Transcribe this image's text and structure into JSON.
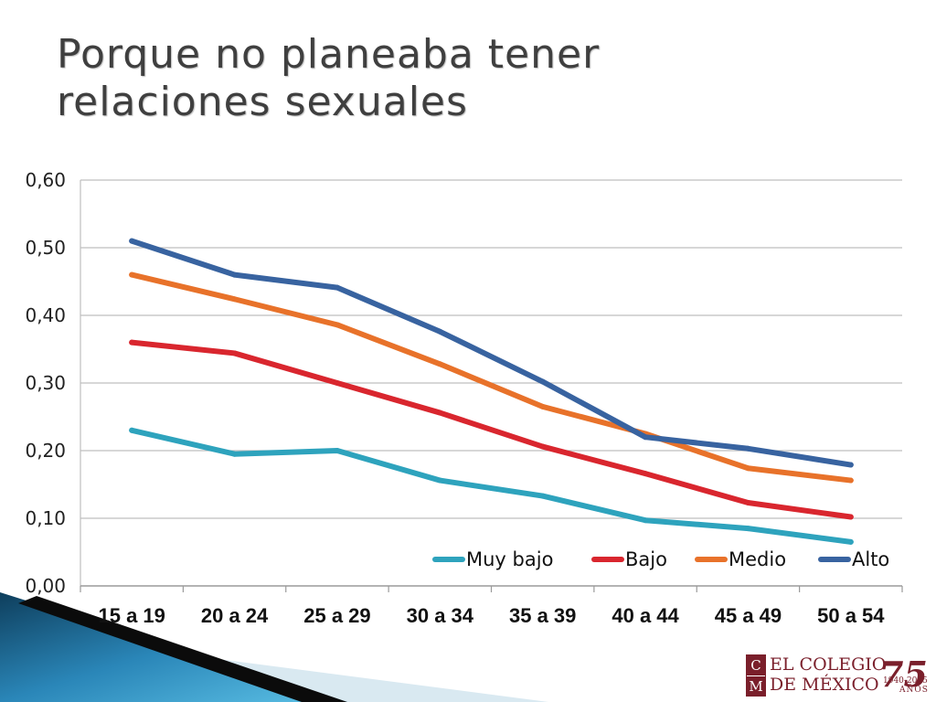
{
  "slide": {
    "title_line1": "Porque no planeaba tener",
    "title_line2": "relaciones sexuales"
  },
  "chart_data": {
    "type": "line",
    "categories": [
      "15 a 19",
      "20 a 24",
      "25 a 29",
      "30 a 34",
      "35 a 39",
      "40 a 44",
      "45 a 49",
      "50 a 54"
    ],
    "series": [
      {
        "name": "Muy bajo",
        "color": "#2ea3bd",
        "values": [
          0.23,
          0.195,
          0.2,
          0.156,
          0.133,
          0.097,
          0.085,
          0.065
        ]
      },
      {
        "name": "Bajo",
        "color": "#d9262e",
        "values": [
          0.36,
          0.344,
          0.3,
          0.256,
          0.206,
          0.166,
          0.123,
          0.102
        ]
      },
      {
        "name": "Medio",
        "color": "#e8722a",
        "values": [
          0.46,
          0.424,
          0.386,
          0.328,
          0.265,
          0.225,
          0.174,
          0.156
        ]
      },
      {
        "name": "Alto",
        "color": "#3863a0",
        "values": [
          0.51,
          0.46,
          0.441,
          0.376,
          0.302,
          0.22,
          0.203,
          0.179
        ]
      }
    ],
    "yticks": [
      "0,00",
      "0,10",
      "0,20",
      "0,30",
      "0,40",
      "0,50",
      "0,60"
    ],
    "ylim": [
      0,
      0.6
    ],
    "grid": true,
    "legend_position": "inside-bottom-right",
    "xlabel": "",
    "ylabel": ""
  },
  "logo": {
    "mark_top": "C",
    "mark_bottom": "M",
    "line1": "EL COLEGIO",
    "line2": "DE MÉXICO",
    "anniversary": "75",
    "years": "1940-2015",
    "anos": "AÑOS"
  },
  "colors": {
    "title": "#3f3f3f",
    "logo": "#7a1f2b",
    "wedge_dark": "#0e3e5c",
    "wedge_light": "#3fa3d0"
  }
}
